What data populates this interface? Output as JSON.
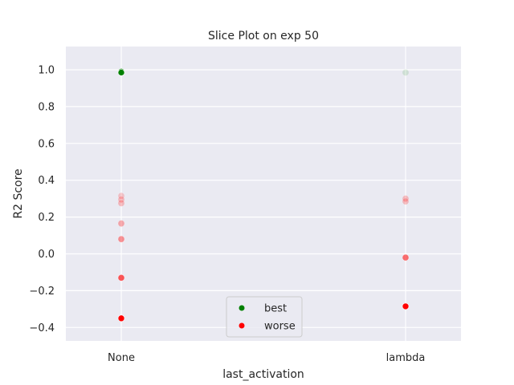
{
  "chart_data": {
    "type": "scatter",
    "title": "Slice Plot on exp 50",
    "xlabel": "last_activation",
    "ylabel": "R2 Score",
    "categories": [
      "None",
      "lambda"
    ],
    "ylim": [
      -0.48,
      1.12
    ],
    "yticks": [
      1.0,
      0.8,
      0.6,
      0.4,
      0.2,
      0.0,
      -0.2,
      -0.4
    ],
    "ytick_labels": [
      "1.0",
      "0.8",
      "0.6",
      "0.4",
      "0.2",
      "0.0",
      "−0.2",
      "−0.4"
    ],
    "grid": true,
    "legend_position": "lower center",
    "colors": {
      "background": "#eaeaf2",
      "grid": "#ffffff",
      "best": "#008000",
      "worse": "#ff0000"
    },
    "series": [
      {
        "name": "best",
        "color": "#008000",
        "points": [
          {
            "x": "None",
            "y": 0.99,
            "opacity": 1.0
          },
          {
            "x": "None",
            "y": 0.985,
            "opacity": 1.0
          },
          {
            "x": "lambda",
            "y": 0.985,
            "opacity": 0.12
          }
        ]
      },
      {
        "name": "worse",
        "color": "#ff0000",
        "points": [
          {
            "x": "None",
            "y": 0.315,
            "opacity": 0.18
          },
          {
            "x": "None",
            "y": 0.295,
            "opacity": 0.22
          },
          {
            "x": "None",
            "y": 0.275,
            "opacity": 0.22
          },
          {
            "x": "None",
            "y": 0.165,
            "opacity": 0.3
          },
          {
            "x": "None",
            "y": 0.08,
            "opacity": 0.4
          },
          {
            "x": "None",
            "y": -0.13,
            "opacity": 0.65
          },
          {
            "x": "None",
            "y": -0.35,
            "opacity": 1.0
          },
          {
            "x": "lambda",
            "y": 0.3,
            "opacity": 0.22
          },
          {
            "x": "lambda",
            "y": 0.285,
            "opacity": 0.22
          },
          {
            "x": "lambda",
            "y": -0.02,
            "opacity": 0.55
          },
          {
            "x": "lambda",
            "y": -0.285,
            "opacity": 1.0
          }
        ]
      }
    ],
    "legend": [
      {
        "label": "best",
        "color": "#008000"
      },
      {
        "label": "worse",
        "color": "#ff0000"
      }
    ]
  }
}
